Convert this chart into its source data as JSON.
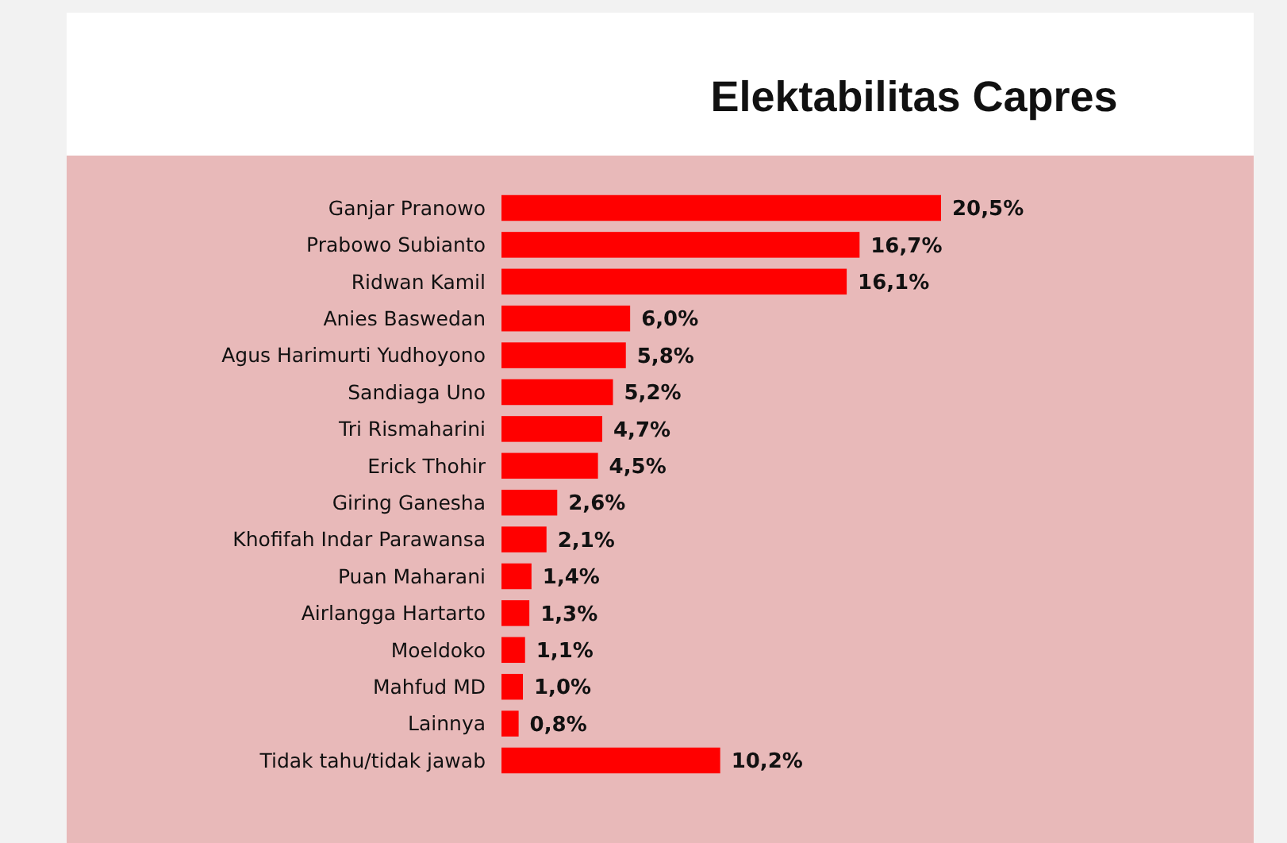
{
  "chart_data": {
    "type": "bar",
    "orientation": "horizontal",
    "title": "Elektabilitas Capres",
    "categories": [
      "Ganjar Pranowo",
      "Prabowo Subianto",
      "Ridwan Kamil",
      "Anies Baswedan",
      "Agus Harimurti Yudhoyono",
      "Sandiaga Uno",
      "Tri Rismaharini",
      "Erick Thohir",
      "Giring Ganesha",
      "Khofifah Indar Parawansa",
      "Puan Maharani",
      "Airlangga Hartarto",
      "Moeldoko",
      "Mahfud MD",
      "Lainnya",
      "Tidak tahu/tidak jawab"
    ],
    "values": [
      20.5,
      16.7,
      16.1,
      6.0,
      5.8,
      5.2,
      4.7,
      4.5,
      2.6,
      2.1,
      1.4,
      1.3,
      1.1,
      1.0,
      0.8,
      10.2
    ],
    "value_labels": [
      "20,5%",
      "16,7%",
      "16,1%",
      "6,0%",
      "5,8%",
      "5,2%",
      "4,7%",
      "4,5%",
      "2,6%",
      "2,1%",
      "1,4%",
      "1,3%",
      "1,1%",
      "1,0%",
      "0,8%",
      "10,2%"
    ],
    "color": "#ff0000"
  }
}
